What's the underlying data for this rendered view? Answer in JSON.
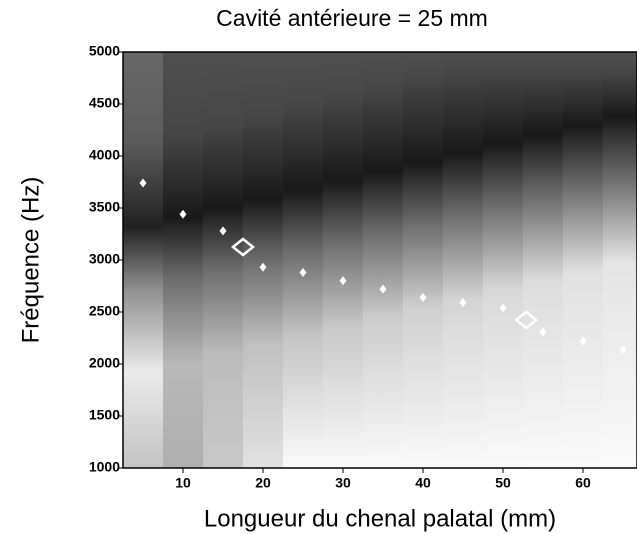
{
  "chart_data": {
    "type": "scatter",
    "title": "Cavité antérieure = 25 mm",
    "x_label": "Longueur du chenal palatal (mm)",
    "y_label": "Fréquence (Hz)",
    "xlim": [
      2.5,
      66.75
    ],
    "ylim": [
      1000,
      5000
    ],
    "xticks": [
      10,
      20,
      30,
      40,
      50,
      60
    ],
    "yticks": [
      1000,
      1500,
      2000,
      2500,
      3000,
      3500,
      4000,
      4500,
      5000
    ],
    "series": [
      {
        "marker": "small-diamond",
        "color": "#ffffff",
        "x": [
          5,
          10,
          15,
          20,
          25,
          30,
          35,
          40,
          45,
          50,
          55,
          60,
          65
        ],
        "values": [
          3740,
          3440,
          3280,
          2930,
          2880,
          2800,
          2720,
          2640,
          2590,
          2540,
          2310,
          2220,
          2140
        ]
      },
      {
        "marker": "large-hollow-diamond",
        "color": "#ffffff",
        "x": [
          17.5,
          52.9
        ],
        "values": [
          3125,
          2423
        ]
      }
    ]
  }
}
